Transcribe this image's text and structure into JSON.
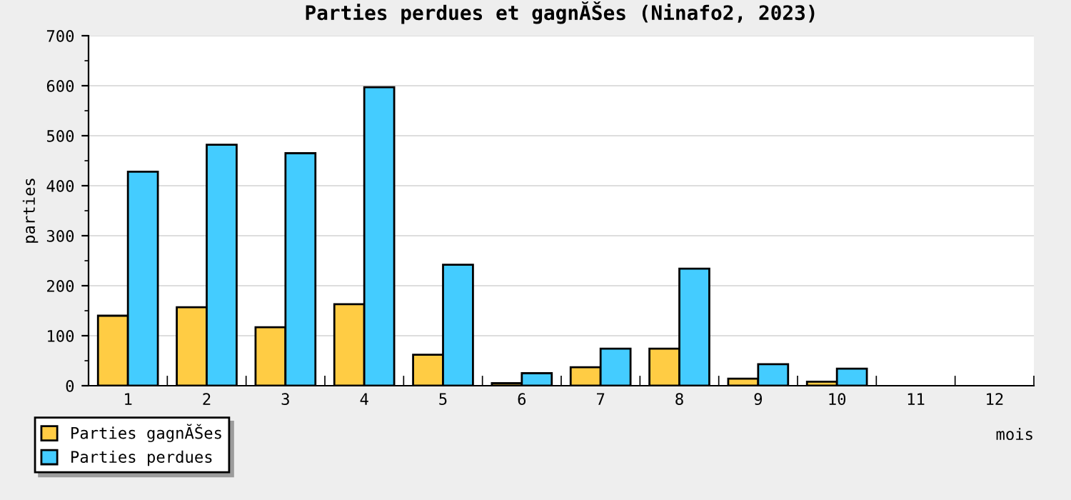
{
  "chart_data": {
    "type": "bar",
    "title": "Parties perdues et gagnĂŠes (Ninafo2, 2023)",
    "xlabel": "mois",
    "ylabel": "parties",
    "categories": [
      "1",
      "2",
      "3",
      "4",
      "5",
      "6",
      "7",
      "8",
      "9",
      "10",
      "11",
      "12"
    ],
    "series": [
      {
        "name": "Parties gagnĂŠes",
        "color": "#ffcc44",
        "values": [
          140,
          157,
          117,
          163,
          62,
          5,
          37,
          74,
          14,
          8,
          null,
          null
        ]
      },
      {
        "name": "Parties perdues",
        "color": "#44ccff",
        "values": [
          428,
          482,
          465,
          597,
          242,
          25,
          74,
          234,
          43,
          34,
          null,
          null
        ]
      }
    ],
    "ylim": [
      0,
      700
    ],
    "yticks": [
      0,
      100,
      200,
      300,
      400,
      500,
      600,
      700
    ],
    "grid": "y",
    "legend": "bottom left"
  }
}
